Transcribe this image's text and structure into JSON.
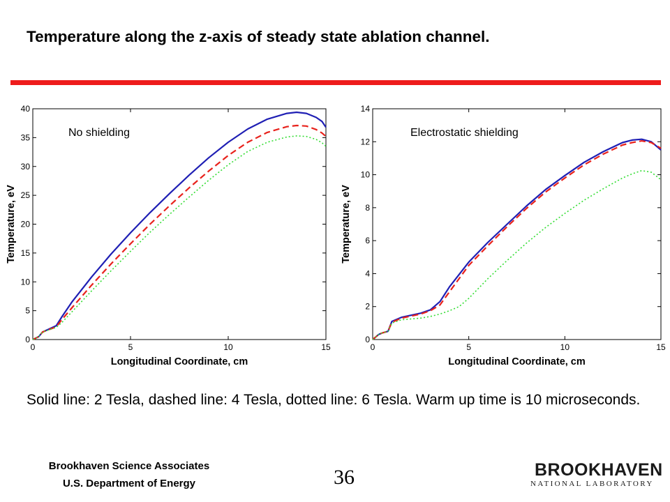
{
  "slide": {
    "title": "Temperature along the z-axis of steady state ablation channel.",
    "caption": "Solid line: 2 Tesla, dashed line: 4 Tesla,  dotted line: 6 Tesla. Warm up time is 10 microseconds.",
    "footer_line1": "Brookhaven Science Associates",
    "footer_line2": "U.S. Department of Energy",
    "page_number": "36",
    "logo_main": "BROOKHAVEN",
    "logo_sub": "NATIONAL LABORATORY",
    "rule_color": "#ee1c1c"
  },
  "chart_data": [
    {
      "type": "line",
      "panel_label": "No shielding",
      "xlabel": "Longitudinal Coordinate, cm",
      "ylabel": "Temperature, eV",
      "xlim": [
        0,
        15
      ],
      "ylim": [
        0,
        40
      ],
      "xticks": [
        0,
        5,
        10,
        15
      ],
      "yticks": [
        0,
        5,
        10,
        15,
        20,
        25,
        30,
        35,
        40
      ],
      "grid": false,
      "series": [
        {
          "style": "solid",
          "color": "#1f1fb4",
          "x": [
            0,
            0.3,
            0.5,
            1.2,
            1.5,
            2,
            3,
            4,
            5,
            6,
            7,
            8,
            9,
            10,
            11,
            12,
            13,
            13.5,
            14,
            14.5,
            14.8,
            15
          ],
          "y": [
            0,
            0.5,
            1.3,
            2.4,
            4,
            6.5,
            10.8,
            14.8,
            18.5,
            22,
            25.3,
            28.5,
            31.5,
            34.2,
            36.5,
            38.2,
            39.2,
            39.4,
            39.2,
            38.5,
            37.8,
            36.8
          ]
        },
        {
          "style": "dashed",
          "color": "#e8221c",
          "x": [
            0,
            0.3,
            0.5,
            1.2,
            1.5,
            2,
            3,
            4,
            5,
            6,
            7,
            8,
            9,
            10,
            11,
            12,
            13,
            13.5,
            14,
            14.5,
            14.8,
            15
          ],
          "y": [
            0,
            0.5,
            1.3,
            2.2,
            3.5,
            5.5,
            9.4,
            13.1,
            16.6,
            20,
            23.2,
            26.3,
            29.2,
            31.9,
            34.2,
            35.9,
            36.9,
            37.1,
            37,
            36.4,
            35.8,
            35.2
          ]
        },
        {
          "style": "dotted",
          "color": "#33dd33",
          "x": [
            0,
            0.3,
            0.5,
            1.2,
            1.5,
            2,
            3,
            4,
            5,
            6,
            7,
            8,
            9,
            10,
            11,
            12,
            13,
            13.5,
            14,
            14.5,
            14.8,
            15
          ],
          "y": [
            0,
            0.5,
            1.3,
            2.1,
            3,
            4.8,
            8.4,
            11.9,
            15.3,
            18.6,
            21.7,
            24.7,
            27.6,
            30.3,
            32.6,
            34.2,
            35.1,
            35.3,
            35.2,
            34.7,
            34.1,
            33.5
          ]
        }
      ]
    },
    {
      "type": "line",
      "panel_label": "Electrostatic shielding",
      "xlabel": "Longitudinal Coordinate, cm",
      "ylabel": "Temperature, eV",
      "xlim": [
        0,
        15
      ],
      "ylim": [
        0,
        14
      ],
      "xticks": [
        0,
        5,
        10,
        15
      ],
      "yticks": [
        0,
        2,
        4,
        6,
        8,
        10,
        12,
        14
      ],
      "grid": false,
      "series": [
        {
          "style": "solid",
          "color": "#1f1fb4",
          "x": [
            0,
            0.3,
            0.5,
            0.8,
            1.0,
            1.5,
            2.5,
            3.0,
            3.5,
            4,
            5,
            6,
            7,
            8,
            9,
            10,
            11,
            12,
            13,
            13.5,
            14,
            14.5,
            15
          ],
          "y": [
            0,
            0.3,
            0.4,
            0.5,
            1.1,
            1.35,
            1.6,
            1.8,
            2.3,
            3.2,
            4.7,
            5.9,
            7.0,
            8.1,
            9.1,
            9.95,
            10.75,
            11.4,
            11.95,
            12.1,
            12.15,
            12.0,
            11.5
          ]
        },
        {
          "style": "dashed",
          "color": "#e8221c",
          "x": [
            0,
            0.3,
            0.5,
            0.8,
            1.0,
            1.5,
            2.5,
            3.0,
            3.5,
            4,
            5,
            6,
            7,
            8,
            9,
            10,
            11,
            12,
            13,
            13.5,
            14,
            14.5,
            15
          ],
          "y": [
            0,
            0.3,
            0.4,
            0.5,
            1.05,
            1.3,
            1.55,
            1.75,
            2.1,
            2.9,
            4.5,
            5.7,
            6.85,
            7.95,
            8.95,
            9.8,
            10.6,
            11.25,
            11.8,
            11.95,
            12.05,
            11.95,
            11.6
          ]
        },
        {
          "style": "dotted",
          "color": "#33dd33",
          "x": [
            0,
            0.3,
            0.5,
            0.8,
            1.0,
            1.5,
            2.5,
            3.0,
            3.5,
            4,
            4.5,
            5,
            6,
            7,
            8,
            9,
            10,
            11,
            12,
            13,
            13.5,
            14,
            14.5,
            15
          ],
          "y": [
            0,
            0.3,
            0.4,
            0.5,
            1.0,
            1.2,
            1.3,
            1.4,
            1.55,
            1.75,
            2.0,
            2.5,
            3.7,
            4.8,
            5.85,
            6.8,
            7.65,
            8.45,
            9.15,
            9.8,
            10.05,
            10.25,
            10.15,
            9.7
          ]
        }
      ]
    }
  ]
}
